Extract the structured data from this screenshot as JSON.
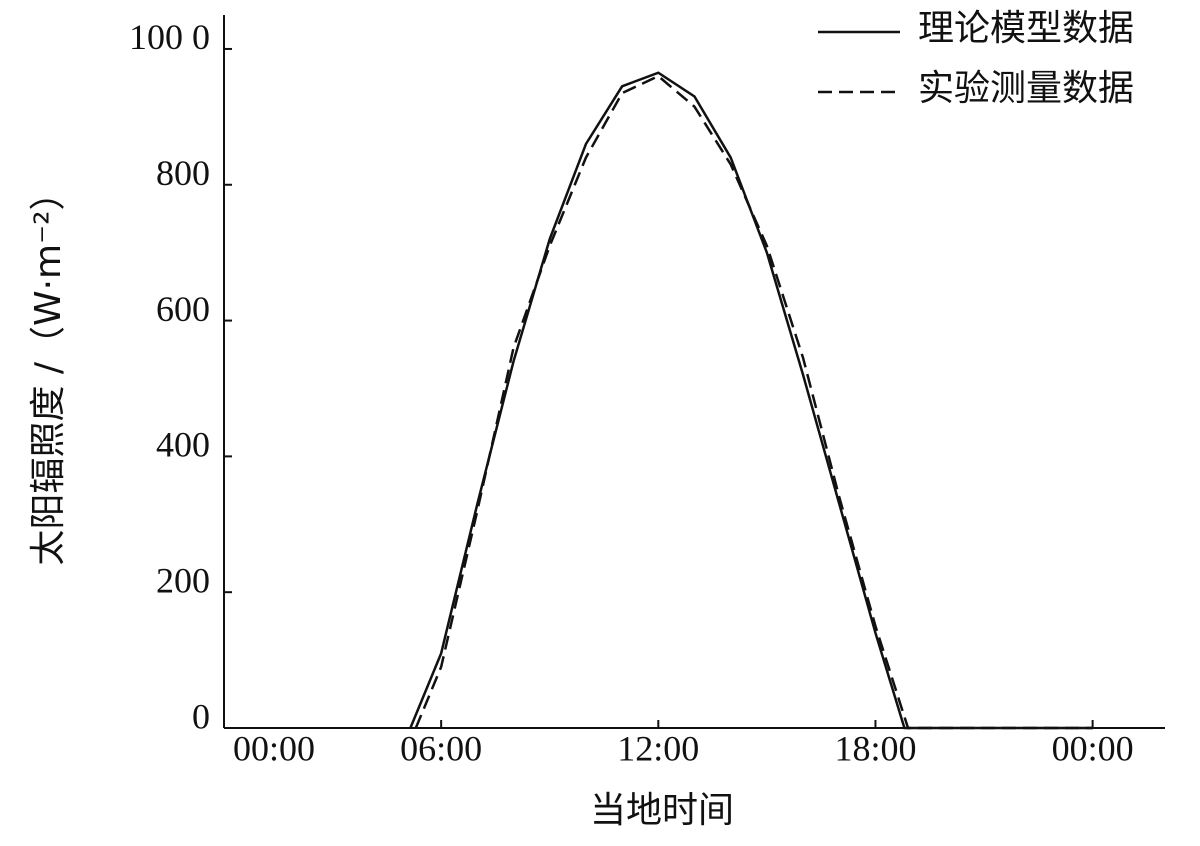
{
  "chart_data": {
    "type": "line",
    "x_label": "当地时间",
    "y_label": "太阳辐照度 /（W·m⁻²）",
    "xlim": [
      0,
      26
    ],
    "xticks": [
      {
        "value": 0,
        "label": "00:00"
      },
      {
        "value": 6,
        "label": "06:00"
      },
      {
        "value": 12,
        "label": "12:00"
      },
      {
        "value": 18,
        "label": "18:00"
      },
      {
        "value": 24,
        "label": "00:00"
      }
    ],
    "ylim": [
      0,
      1050
    ],
    "yticks": [
      0,
      200,
      400,
      600,
      800,
      {
        "value": 1000,
        "label": "100 0"
      }
    ],
    "legend": "top-right",
    "series": [
      {
        "name": "理论模型数据",
        "color": "#111111",
        "dash": "solid",
        "x": [
          5.15,
          6,
          7,
          8,
          9,
          10,
          11,
          12,
          13,
          14,
          15,
          16,
          17,
          18,
          18.8,
          24
        ],
        "values": [
          0,
          110,
          330,
          540,
          720,
          860,
          945,
          965,
          930,
          840,
          700,
          520,
          330,
          140,
          0,
          0
        ]
      },
      {
        "name": "实验测量数据",
        "color": "#111111",
        "dash": "dashed",
        "x": [
          5.3,
          6,
          7,
          8,
          9,
          10,
          11,
          12,
          13,
          14,
          15,
          16,
          17,
          18,
          18.9,
          24
        ],
        "values": [
          0,
          90,
          320,
          560,
          710,
          840,
          935,
          960,
          915,
          830,
          710,
          545,
          340,
          150,
          0,
          0
        ]
      }
    ]
  }
}
